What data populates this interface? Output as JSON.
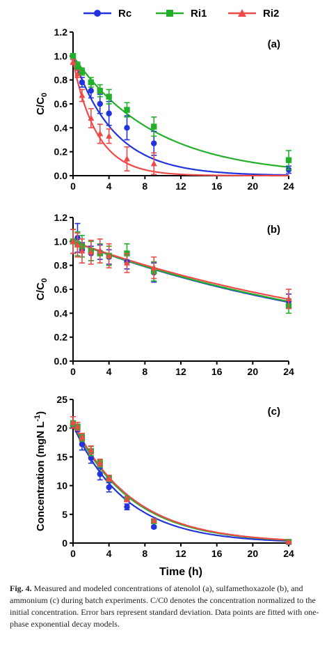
{
  "legend": {
    "items": [
      {
        "name": "Rc",
        "color": "#2233dd",
        "marker": "circle"
      },
      {
        "name": "Ri1",
        "color": "#22b02a",
        "marker": "square"
      },
      {
        "name": "Ri2",
        "color": "#ee4a4a",
        "marker": "triangle"
      }
    ]
  },
  "chart_data": [
    {
      "type": "scatter",
      "panel_label": "(a)",
      "ylabel": "C/C0",
      "xlabel": "",
      "x_ticks": [
        "0",
        "4",
        "8",
        "12",
        "16",
        "20",
        "24"
      ],
      "y_ticks": [
        "0.0",
        "0.2",
        "0.4",
        "0.6",
        "0.8",
        "1.0",
        "1.2"
      ],
      "xlim": [
        0,
        24
      ],
      "ylim": [
        0,
        1.2
      ],
      "series": [
        {
          "name": "Rc",
          "color": "#2233dd",
          "marker": "circle",
          "x": [
            0,
            0.5,
            1,
            2,
            3,
            4,
            6,
            9,
            24
          ],
          "y": [
            1.0,
            0.91,
            0.78,
            0.71,
            0.6,
            0.52,
            0.4,
            0.27,
            0.05
          ],
          "err": [
            0.02,
            0.03,
            0.04,
            0.06,
            0.08,
            0.1,
            0.1,
            0.1,
            0.03
          ],
          "fit_k": 0.22
        },
        {
          "name": "Ri1",
          "color": "#22b02a",
          "marker": "square",
          "x": [
            0,
            0.5,
            1,
            2,
            3,
            4,
            6,
            9,
            24
          ],
          "y": [
            1.0,
            0.92,
            0.87,
            0.78,
            0.71,
            0.66,
            0.55,
            0.41,
            0.13
          ],
          "err": [
            0.02,
            0.03,
            0.03,
            0.04,
            0.05,
            0.06,
            0.06,
            0.08,
            0.08
          ],
          "fit_k": 0.11
        },
        {
          "name": "Ri2",
          "color": "#ee4a4a",
          "marker": "triangle",
          "x": [
            0,
            0.5,
            1,
            2,
            3,
            4,
            6,
            9
          ],
          "y": [
            0.95,
            0.85,
            0.67,
            0.48,
            0.35,
            0.33,
            0.14,
            0.1
          ],
          "err": [
            0.02,
            0.03,
            0.05,
            0.08,
            0.08,
            0.06,
            0.1,
            0.09
          ],
          "fit_k": 0.37
        }
      ]
    },
    {
      "type": "scatter",
      "panel_label": "(b)",
      "ylabel": "C/C0",
      "xlabel": "",
      "x_ticks": [
        "0",
        "4",
        "8",
        "12",
        "16",
        "20",
        "24"
      ],
      "y_ticks": [
        "0.0",
        "0.2",
        "0.4",
        "0.6",
        "0.8",
        "1.0",
        "1.2"
      ],
      "xlim": [
        0,
        24
      ],
      "ylim": [
        0,
        1.2
      ],
      "series": [
        {
          "name": "Rc",
          "color": "#2233dd",
          "marker": "circle",
          "x": [
            0,
            0.5,
            1,
            2,
            3,
            4,
            6,
            9,
            24
          ],
          "y": [
            1.0,
            1.03,
            0.93,
            0.9,
            0.91,
            0.87,
            0.83,
            0.74,
            0.5
          ],
          "err": [
            0.1,
            0.12,
            0.06,
            0.06,
            0.06,
            0.06,
            0.06,
            0.08,
            0.06
          ],
          "fit_k": 0.0295
        },
        {
          "name": "Ri1",
          "color": "#22b02a",
          "marker": "square",
          "x": [
            0,
            0.5,
            1,
            2,
            3,
            4,
            6,
            9,
            24
          ],
          "y": [
            1.0,
            0.98,
            0.96,
            0.92,
            0.9,
            0.88,
            0.9,
            0.75,
            0.46
          ],
          "err": [
            0.1,
            0.1,
            0.09,
            0.08,
            0.08,
            0.08,
            0.08,
            0.08,
            0.06
          ],
          "fit_k": 0.029
        },
        {
          "name": "Ri2",
          "color": "#ee4a4a",
          "marker": "triangle",
          "x": [
            0,
            0.5,
            1,
            2,
            3,
            4,
            6,
            9,
            24
          ],
          "y": [
            1.0,
            0.97,
            0.92,
            0.91,
            0.92,
            0.88,
            0.82,
            0.78,
            0.52
          ],
          "err": [
            0.1,
            0.1,
            0.1,
            0.1,
            0.1,
            0.1,
            0.08,
            0.09,
            0.08
          ],
          "fit_k": 0.0275
        }
      ]
    },
    {
      "type": "scatter",
      "panel_label": "(c)",
      "ylabel": "Concentration (mgN L-1)",
      "xlabel": "Time (h)",
      "x_ticks": [
        "0",
        "4",
        "8",
        "12",
        "16",
        "20",
        "24"
      ],
      "y_ticks": [
        "0",
        "5",
        "10",
        "15",
        "20",
        "25"
      ],
      "xlim": [
        0,
        24
      ],
      "ylim": [
        0,
        25
      ],
      "series": [
        {
          "name": "Rc",
          "color": "#2233dd",
          "marker": "circle",
          "x": [
            0,
            0.5,
            1,
            2,
            3,
            4,
            6,
            9,
            24
          ],
          "y": [
            20.5,
            20.0,
            17.2,
            14.8,
            12.0,
            9.7,
            6.3,
            2.8,
            0.1
          ],
          "err": [
            0.5,
            0.6,
            1.0,
            0.9,
            1.0,
            0.8,
            0.5,
            0.2,
            0.1
          ],
          "fit_k": 0.17
        },
        {
          "name": "Ri1",
          "color": "#22b02a",
          "marker": "square",
          "x": [
            0,
            0.5,
            1,
            2,
            3,
            4,
            6,
            9,
            24
          ],
          "y": [
            20.8,
            20.2,
            18.3,
            16.0,
            13.8,
            11.2,
            7.7,
            3.8,
            0.2
          ],
          "err": [
            0.5,
            0.5,
            0.6,
            0.8,
            0.6,
            0.5,
            0.4,
            0.3,
            0.1
          ],
          "fit_k": 0.155
        },
        {
          "name": "Ri2",
          "color": "#ee4a4a",
          "marker": "triangle",
          "x": [
            0,
            0.5,
            1,
            2,
            3,
            4,
            6,
            9,
            24
          ],
          "y": [
            21.0,
            20.3,
            18.5,
            16.2,
            14.0,
            11.3,
            7.6,
            3.9,
            0.2
          ],
          "err": [
            1.0,
            0.7,
            0.6,
            0.7,
            0.6,
            0.5,
            0.4,
            0.3,
            0.1
          ],
          "fit_k": 0.152
        }
      ]
    }
  ],
  "caption": {
    "fig_label": "Fig. 4.",
    "text": "Measured and modeled concentrations of atenolol (a), sulfamethoxazole (b), and ammonium (c) during batch experiments. C/C0 denotes the concentration normalized to the initial concentration. Error bars represent standard deviation. Data points are fitted with one-phase exponential decay models."
  }
}
